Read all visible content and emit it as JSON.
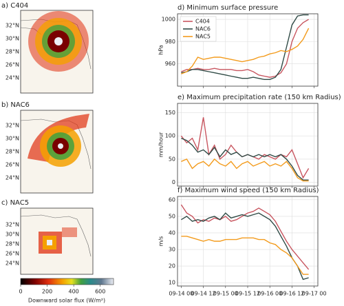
{
  "maps": [
    {
      "title": "a) C404"
    },
    {
      "title": "b) NAC6"
    },
    {
      "title": "c) NAC5"
    }
  ],
  "map_lat_labels": [
    "32°N",
    "30°N",
    "28°N",
    "26°N",
    "24°N"
  ],
  "colorbar": {
    "label": "Downward solar flux (W/m²)",
    "lim": [
      0,
      700
    ],
    "ticks": [
      0,
      200,
      400,
      600
    ]
  },
  "chart_data": [
    {
      "type": "line",
      "title": "d) Minimum surface pressure",
      "y_label": "hPa",
      "grid": true,
      "legend": "upper left",
      "xtick_labels": false,
      "x": [
        "09-14 00",
        "09-14 03",
        "09-14 06",
        "09-14 09",
        "09-14 12",
        "09-14 15",
        "09-14 18",
        "09-14 21",
        "09-15 00",
        "09-15 03",
        "09-15 06",
        "09-15 09",
        "09-15 12",
        "09-15 15",
        "09-15 18",
        "09-15 21",
        "09-16 00",
        "09-16 03",
        "09-16 06",
        "09-16 09",
        "09-16 12",
        "09-16 15",
        "09-16 18",
        "09-16 21"
      ],
      "xlim": [
        "09-13 22",
        "09-17 02"
      ],
      "xticks": [
        "09-14 00",
        "09-14 12",
        "09-15 00",
        "09-15 12",
        "09-16 00",
        "09-16 12",
        "09-17 00"
      ],
      "ylim": [
        940,
        1005
      ],
      "yticks": [
        960,
        980,
        1000
      ],
      "series": [
        {
          "name": "C404",
          "color": "#c8555f",
          "values": [
            953,
            955,
            955,
            956,
            955,
            955,
            956,
            955,
            955,
            955,
            954,
            954,
            955,
            953,
            950,
            949,
            948,
            949,
            952,
            960,
            980,
            992,
            997,
            1000
          ]
        },
        {
          "name": "NAC6",
          "color": "#2f4a45",
          "values": [
            952,
            953,
            955,
            955,
            954,
            953,
            952,
            951,
            950,
            949,
            948,
            947,
            947,
            948,
            947,
            946,
            946,
            948,
            955,
            975,
            995,
            1003,
            1004,
            1004
          ]
        },
        {
          "name": "NAC5",
          "color": "#f39b1c",
          "values": [
            951,
            953,
            958,
            966,
            964,
            965,
            966,
            966,
            965,
            964,
            963,
            962,
            963,
            964,
            966,
            967,
            969,
            970,
            972,
            971,
            973,
            976,
            982,
            992
          ]
        }
      ]
    },
    {
      "type": "line",
      "title": "e) Maximum precipitation rate (150 km Radius)",
      "y_label": "mm/hour",
      "grid": true,
      "xtick_labels": false,
      "x": [
        "09-14 00",
        "09-14 03",
        "09-14 06",
        "09-14 09",
        "09-14 12",
        "09-14 15",
        "09-14 18",
        "09-14 21",
        "09-15 00",
        "09-15 03",
        "09-15 06",
        "09-15 09",
        "09-15 12",
        "09-15 15",
        "09-15 18",
        "09-15 21",
        "09-16 00",
        "09-16 03",
        "09-16 06",
        "09-16 09",
        "09-16 12",
        "09-16 15",
        "09-16 18",
        "09-16 21"
      ],
      "xlim": [
        "09-13 22",
        "09-17 02"
      ],
      "xticks": [
        "09-14 00",
        "09-14 12",
        "09-15 00",
        "09-15 12",
        "09-16 00",
        "09-16 12",
        "09-17 00"
      ],
      "ylim": [
        -8,
        170
      ],
      "yticks": [
        0,
        50,
        100,
        150
      ],
      "series": [
        {
          "name": "C404",
          "color": "#c8555f",
          "values": [
            100,
            85,
            95,
            70,
            140,
            60,
            80,
            50,
            60,
            80,
            65,
            55,
            60,
            55,
            50,
            60,
            55,
            50,
            60,
            55,
            70,
            40,
            10,
            30
          ]
        },
        {
          "name": "NAC6",
          "color": "#2f4a45",
          "values": [
            95,
            90,
            80,
            65,
            70,
            60,
            75,
            55,
            70,
            60,
            65,
            55,
            60,
            55,
            60,
            55,
            60,
            55,
            60,
            50,
            35,
            15,
            5,
            5
          ]
        },
        {
          "name": "NAC5",
          "color": "#f39b1c",
          "values": [
            45,
            50,
            30,
            40,
            45,
            35,
            50,
            40,
            35,
            45,
            30,
            40,
            45,
            35,
            40,
            45,
            35,
            40,
            35,
            45,
            30,
            10,
            3,
            3
          ]
        }
      ]
    },
    {
      "type": "line",
      "title": "f) Maximum wind speed (150 km Radius)",
      "y_label": "m/s",
      "grid": true,
      "xtick_labels": true,
      "x": [
        "09-14 00",
        "09-14 03",
        "09-14 06",
        "09-14 09",
        "09-14 12",
        "09-14 15",
        "09-14 18",
        "09-14 21",
        "09-15 00",
        "09-15 03",
        "09-15 06",
        "09-15 09",
        "09-15 12",
        "09-15 15",
        "09-15 18",
        "09-15 21",
        "09-16 00",
        "09-16 03",
        "09-16 06",
        "09-16 09",
        "09-16 12",
        "09-16 15",
        "09-16 18",
        "09-16 21"
      ],
      "xlim": [
        "09-13 22",
        "09-17 02"
      ],
      "xticks": [
        "09-14 00",
        "09-14 12",
        "09-15 00",
        "09-15 12",
        "09-16 00",
        "09-16 12",
        "09-17 00"
      ],
      "ylim": [
        8,
        62
      ],
      "yticks": [
        10,
        20,
        30,
        40,
        50,
        60
      ],
      "series": [
        {
          "name": "C404",
          "color": "#c8555f",
          "values": [
            57,
            52,
            50,
            46,
            48,
            47,
            49,
            48,
            50,
            47,
            48,
            50,
            52,
            53,
            55,
            53,
            51,
            47,
            41,
            35,
            30,
            26,
            22,
            18
          ]
        },
        {
          "name": "NAC6",
          "color": "#2f4a45",
          "values": [
            48,
            50,
            47,
            48,
            47,
            49,
            50,
            48,
            52,
            49,
            50,
            51,
            50,
            51,
            52,
            50,
            48,
            44,
            38,
            32,
            25,
            20,
            12,
            13
          ]
        },
        {
          "name": "NAC5",
          "color": "#f39b1c",
          "values": [
            38,
            38,
            37,
            36,
            35,
            36,
            35,
            35,
            36,
            36,
            36,
            37,
            37,
            37,
            36,
            36,
            34,
            33,
            30,
            28,
            25,
            20,
            15,
            15
          ]
        }
      ]
    }
  ]
}
